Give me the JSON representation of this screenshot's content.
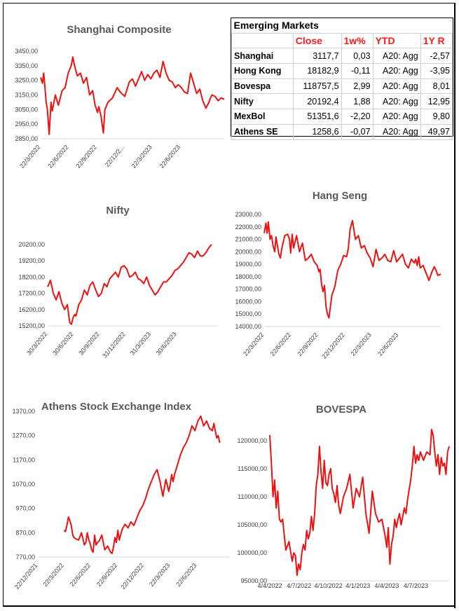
{
  "colors": {
    "line": "#ee1111",
    "title": "#595959",
    "header": "#ff1a1a"
  },
  "table": {
    "title": "Emerging Markets",
    "headers": [
      "Close",
      "1w%",
      "YTD",
      "1Y R"
    ],
    "rows": [
      {
        "name": "Shanghai",
        "close": "3117,7",
        "w1": "0,03",
        "ytd": "A20: Agg",
        "y1": "-2,57"
      },
      {
        "name": "Hong Kong",
        "close": "18182,9",
        "w1": "-0,11",
        "ytd": "A20: Agg",
        "y1": "-3,95"
      },
      {
        "name": "Bovespa",
        "close": "118757,5",
        "w1": "2,99",
        "ytd": "A20: Agg",
        "y1": "8,01"
      },
      {
        "name": "Nifty",
        "close": "20192,4",
        "w1": "1,88",
        "ytd": "A20: Agg",
        "y1": "12,95"
      },
      {
        "name": "MexBol",
        "close": "51351,6",
        "w1": "-2,20",
        "ytd": "A20: Agg",
        "y1": "9,80"
      },
      {
        "name": "Athens SE",
        "close": "1258,6",
        "w1": "-0,07",
        "ytd": "A20: Agg",
        "y1": "49,97"
      }
    ]
  },
  "chart_data": [
    {
      "id": "shanghai",
      "type": "line",
      "title": "Shanghai Composite",
      "ylim": [
        2850,
        3450
      ],
      "yticks": [
        "2850,00",
        "2950,00",
        "3050,00",
        "3150,00",
        "3250,00",
        "3350,00",
        "3450,00"
      ],
      "xticks": [
        "22/3/2022",
        "22/6/2022",
        "22/9/2022",
        "22/12/2...",
        "22/3/2023",
        "22/6/2023"
      ],
      "xlim": [
        0,
        600
      ],
      "xtick_pos": [
        0,
        92,
        184,
        275,
        365,
        457
      ],
      "series": [
        {
          "x": [
            0,
            6,
            10,
            18,
            22,
            28,
            34,
            38,
            48,
            58,
            70,
            80,
            90,
            100,
            105,
            112,
            120,
            130,
            140,
            150,
            160,
            170,
            178,
            186,
            190,
            197,
            205,
            210,
            220,
            235,
            250,
            260,
            275,
            290,
            300,
            310,
            320,
            330,
            340,
            350,
            360,
            370,
            380,
            390,
            400,
            410,
            420,
            430,
            440,
            450,
            460,
            470,
            480,
            490,
            500,
            510,
            520,
            530,
            540,
            545,
            550,
            555,
            560,
            570,
            580,
            590,
            600
          ],
          "y": [
            3270,
            3230,
            3300,
            3100,
            3050,
            2880,
            3100,
            3040,
            3150,
            3080,
            3180,
            3200,
            3300,
            3350,
            3410,
            3340,
            3280,
            3300,
            3230,
            3270,
            3150,
            3180,
            3080,
            3030,
            3070,
            3010,
            2890,
            3050,
            3100,
            3130,
            3200,
            3170,
            3140,
            3240,
            3260,
            3210,
            3260,
            3310,
            3250,
            3290,
            3260,
            3300,
            3320,
            3270,
            3380,
            3300,
            3250,
            3240,
            3200,
            3220,
            3200,
            3170,
            3160,
            3300,
            3230,
            3160,
            3190,
            3110,
            3060,
            3080,
            3100,
            3130,
            3150,
            3140,
            3110,
            3130,
            3120
          ]
        }
      ]
    },
    {
      "id": "nifty",
      "type": "line",
      "title": "Nifty",
      "ylim": [
        15200,
        20200
      ],
      "yticks": [
        "15200,00",
        "16200,00",
        "17200,00",
        "18200,00",
        "19200,00",
        "20200,00"
      ],
      "xticks": [
        "30/3/2022",
        "30/6/2022",
        "30/9/2022",
        "31/12/2022",
        "31/3/2023",
        "30/6/2023"
      ],
      "xlim": [
        0,
        600
      ],
      "xtick_pos": [
        0,
        92,
        184,
        276,
        366,
        457
      ],
      "series": [
        {
          "x": [
            0,
            10,
            20,
            30,
            40,
            50,
            60,
            70,
            78,
            84,
            90,
            96,
            100,
            110,
            120,
            130,
            140,
            150,
            160,
            170,
            180,
            190,
            200,
            210,
            220,
            230,
            240,
            250,
            260,
            270,
            280,
            290,
            300,
            310,
            320,
            330,
            340,
            350,
            360,
            370,
            380,
            390,
            400,
            410,
            420,
            430,
            440,
            450,
            460,
            470,
            480,
            490,
            500,
            510,
            520,
            530,
            540,
            550,
            560,
            570,
            580
          ],
          "y": [
            17600,
            18000,
            17200,
            16800,
            17300,
            16600,
            16200,
            16500,
            15400,
            15300,
            15700,
            15900,
            15800,
            16500,
            16800,
            17400,
            17100,
            17700,
            17900,
            17400,
            17000,
            17200,
            17800,
            17600,
            18100,
            18300,
            18500,
            18200,
            18800,
            18900,
            18700,
            18200,
            18300,
            18500,
            18100,
            18000,
            17800,
            18200,
            17700,
            17400,
            17100,
            17300,
            17600,
            17900,
            17900,
            18100,
            18300,
            18600,
            18700,
            18900,
            19100,
            19400,
            19700,
            19600,
            19400,
            19800,
            19500,
            19500,
            19700,
            20000,
            20200
          ]
        }
      ]
    },
    {
      "id": "hangseng",
      "type": "line",
      "title": "Hang Seng",
      "ylim": [
        14000,
        23000
      ],
      "yticks": [
        "14000,00",
        "15000,00",
        "16000,00",
        "17000,00",
        "18000,00",
        "19000,00",
        "20000,00",
        "21000,00",
        "22000,00",
        "23000,00"
      ],
      "xticks": [
        "22/3/2022",
        "22/6/2022",
        "22/9/2022",
        "22/12/2022",
        "22/3/2023",
        "22/6/2023"
      ],
      "xlim": [
        0,
        600
      ],
      "xtick_pos": [
        0,
        92,
        184,
        275,
        365,
        457
      ],
      "series": [
        {
          "x": [
            0,
            6,
            10,
            14,
            20,
            25,
            30,
            36,
            40,
            45,
            50,
            55,
            60,
            70,
            80,
            86,
            90,
            95,
            100,
            110,
            120,
            130,
            140,
            150,
            160,
            170,
            180,
            186,
            190,
            195,
            200,
            205,
            210,
            215,
            220,
            230,
            240,
            250,
            260,
            270,
            280,
            286,
            292,
            300,
            310,
            320,
            330,
            340,
            350,
            360,
            370,
            380,
            390,
            400,
            410,
            420,
            430,
            440,
            450,
            460,
            470,
            480,
            490,
            500,
            510,
            515,
            520,
            525,
            530,
            540,
            550,
            560,
            570,
            578,
            584,
            590,
            600
          ],
          "y": [
            21500,
            22300,
            21500,
            22400,
            21000,
            21300,
            20500,
            20000,
            21200,
            20500,
            19800,
            19500,
            20300,
            21300,
            21400,
            21000,
            19900,
            21400,
            20300,
            21300,
            20000,
            20700,
            19300,
            19500,
            19800,
            19200,
            18900,
            18400,
            18600,
            17400,
            16800,
            17300,
            15600,
            15000,
            14700,
            16500,
            17200,
            18500,
            19000,
            19700,
            19600,
            20300,
            21800,
            22500,
            21000,
            21300,
            20300,
            20500,
            19900,
            19500,
            18800,
            20200,
            19300,
            19500,
            19800,
            19300,
            19200,
            20100,
            19200,
            19500,
            19800,
            19000,
            18700,
            19400,
            19100,
            19400,
            18900,
            19600,
            18700,
            18900,
            18300,
            17700,
            18400,
            18800,
            18500,
            18100,
            18200
          ]
        }
      ]
    },
    {
      "id": "athens",
      "type": "line",
      "title": "Athens Stock Exchange Index",
      "ylim": [
        770,
        1370
      ],
      "yticks": [
        "770,00",
        "870,00",
        "970,00",
        "1070,00",
        "1170,00",
        "1270,00",
        "1370,00"
      ],
      "xticks": [
        "22/12/2021",
        "22/3/2022",
        "22/6/2022",
        "22/9/2022",
        "22/12/2022",
        "22/3/2023",
        "22/6/2023"
      ],
      "xlim": [
        0,
        660
      ],
      "xtick_pos": [
        0,
        90,
        182,
        274,
        365,
        455,
        547
      ],
      "series": [
        {
          "x": [
            90,
            95,
            100,
            105,
            110,
            115,
            120,
            125,
            130,
            140,
            150,
            160,
            165,
            170,
            175,
            180,
            185,
            190,
            195,
            200,
            205,
            210,
            220,
            230,
            240,
            250,
            255,
            260,
            265,
            270,
            275,
            280,
            290,
            300,
            310,
            320,
            330,
            340,
            350,
            360,
            370,
            380,
            390,
            400,
            410,
            420,
            430,
            440,
            450,
            455,
            460,
            465,
            470,
            480,
            490,
            500,
            510,
            520,
            530,
            540,
            550,
            560,
            570,
            580,
            590,
            600,
            605,
            610,
            615,
            620,
            625
          ],
          "y": [
            880,
            875,
            900,
            935,
            920,
            900,
            860,
            850,
            845,
            840,
            870,
            820,
            830,
            870,
            840,
            825,
            800,
            790,
            860,
            820,
            830,
            835,
            860,
            800,
            815,
            790,
            785,
            810,
            850,
            830,
            880,
            840,
            885,
            905,
            890,
            915,
            900,
            930,
            960,
            980,
            1010,
            1050,
            1080,
            1110,
            1130,
            1080,
            1020,
            1090,
            1040,
            1070,
            1110,
            1080,
            1110,
            1150,
            1190,
            1220,
            1240,
            1270,
            1310,
            1290,
            1330,
            1350,
            1310,
            1330,
            1300,
            1290,
            1320,
            1290,
            1260,
            1270,
            1240
          ]
        }
      ]
    },
    {
      "id": "bovespa",
      "type": "line",
      "title": "BOVESPA",
      "ylim": [
        95000,
        120000
      ],
      "yticks": [
        "95000,00",
        "100000,00",
        "105000,00",
        "110000,00",
        "115000,00",
        "120000,00"
      ],
      "xticks": [
        "4/4/2022",
        "4/7/2022",
        "4/10/2022",
        "4/1/2023",
        "4/4/2023",
        "4/7/2023"
      ],
      "xlim": [
        0,
        560
      ],
      "xtick_pos": [
        0,
        91,
        183,
        275,
        365,
        456
      ],
      "series": [
        {
          "x": [
            0,
            5,
            10,
            15,
            20,
            25,
            30,
            35,
            40,
            50,
            60,
            70,
            75,
            80,
            85,
            90,
            95,
            100,
            105,
            110,
            115,
            120,
            125,
            130,
            135,
            140,
            145,
            150,
            155,
            160,
            165,
            170,
            175,
            180,
            185,
            190,
            195,
            200,
            205,
            210,
            215,
            220,
            225,
            230,
            240,
            250,
            260,
            270,
            280,
            290,
            300,
            310,
            320,
            330,
            340,
            350,
            360,
            365,
            370,
            375,
            380,
            385,
            390,
            395,
            400,
            405,
            410,
            415,
            420,
            425,
            430,
            440,
            445,
            450,
            455,
            460,
            465,
            470,
            480,
            490,
            500,
            505,
            510,
            515,
            520,
            525,
            530,
            535,
            540,
            545,
            550,
            555,
            560
          ],
          "y": [
            121000,
            116000,
            110000,
            113000,
            108000,
            111000,
            106000,
            105500,
            106000,
            100500,
            102000,
            98500,
            100000,
            99500,
            96000,
            98000,
            97000,
            100000,
            101500,
            100500,
            104000,
            102500,
            103500,
            106500,
            104000,
            107000,
            112000,
            114000,
            119000,
            114500,
            111500,
            116500,
            112500,
            112000,
            114000,
            115000,
            111500,
            110500,
            109000,
            112000,
            108500,
            107000,
            108500,
            110000,
            111500,
            114000,
            108000,
            111500,
            110000,
            113500,
            107000,
            103500,
            111000,
            107000,
            105500,
            106000,
            103000,
            101000,
            104500,
            98000,
            101500,
            103000,
            106000,
            104500,
            106000,
            107000,
            105000,
            106500,
            108000,
            107000,
            109500,
            113000,
            115500,
            119000,
            116000,
            117500,
            116500,
            118000,
            116500,
            118000,
            117500,
            122000,
            121000,
            118000,
            115500,
            117500,
            114000,
            117000,
            115500,
            116000,
            114000,
            118000,
            119000
          ]
        }
      ]
    }
  ]
}
